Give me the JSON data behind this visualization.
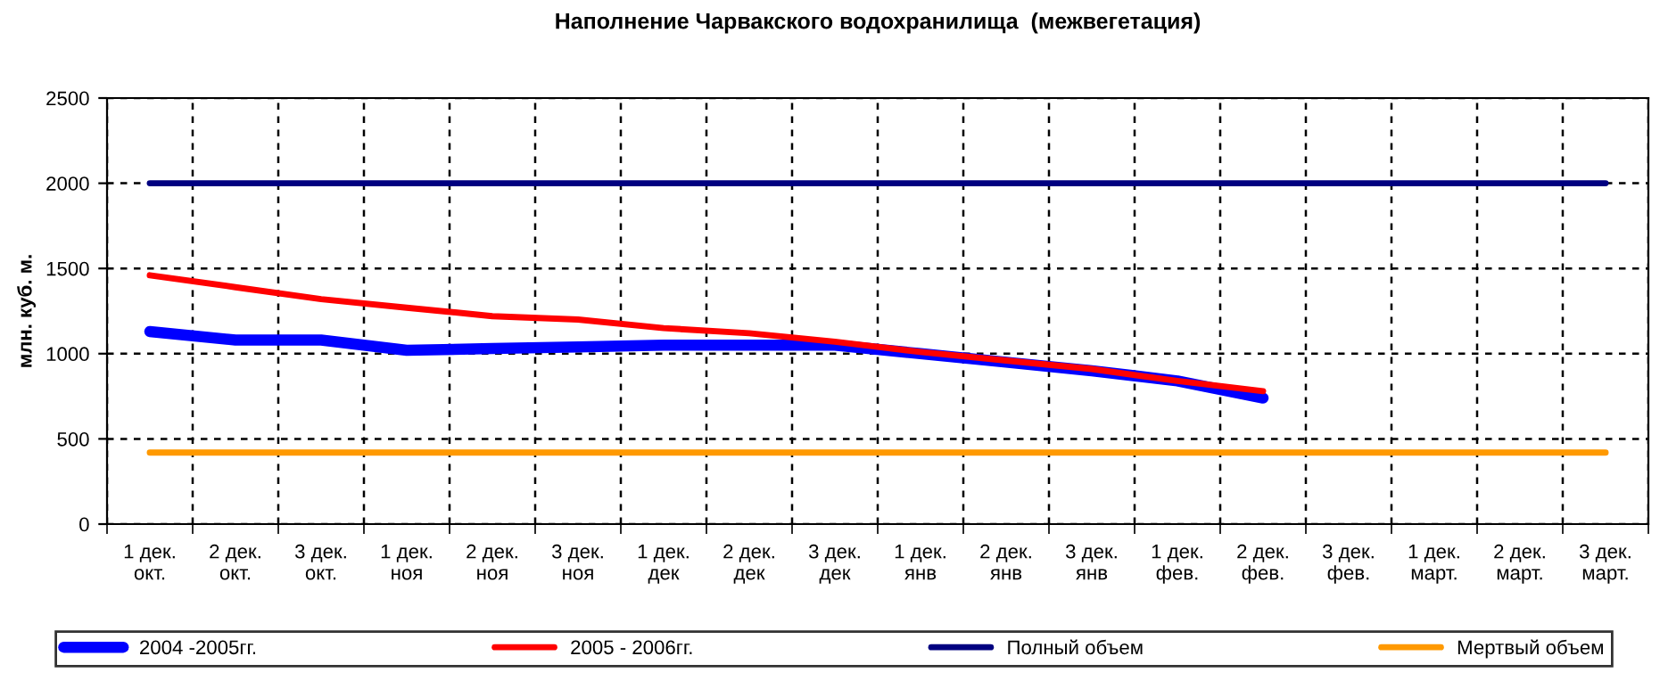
{
  "chart_data": {
    "type": "line",
    "title": "Наполнение Чарвакского водохранилища  (межвегетация)",
    "ylabel": "млн. куб. м.",
    "categories": [
      "1 дек.\nокт.",
      "2 дек.\nокт.",
      "3 дек.\nокт.",
      "1 дек.\nноя",
      "2 дек.\nноя",
      "3 дек.\nноя",
      "1 дек.\nдек",
      "2 дек.\nдек",
      "3 дек.\nдек",
      "1 дек.\nянв",
      "2 дек.\nянв",
      "3 дек.\nянв",
      "1 дек.\nфев.",
      "2 дек.\nфев.",
      "3 дек.\nфев.",
      "1 дек.\nмарт.",
      "2 дек.\nмарт.",
      "3 дек.\nмарт."
    ],
    "series": [
      {
        "name": "2004 -2005гг.",
        "color": "#0000ff",
        "values": [
          1130,
          1080,
          1080,
          1020,
          1030,
          1040,
          1050,
          1050,
          1050,
          1000,
          950,
          900,
          840,
          740,
          null,
          null,
          null,
          null
        ]
      },
      {
        "name": "2005 - 2006гг.",
        "color": "#ff0000",
        "values": [
          1460,
          1390,
          1320,
          1270,
          1220,
          1200,
          1150,
          1120,
          1070,
          1010,
          960,
          910,
          840,
          780,
          null,
          null,
          null,
          null
        ]
      },
      {
        "name": "Полный объем",
        "color": "#000080",
        "values": [
          2000,
          2000,
          2000,
          2000,
          2000,
          2000,
          2000,
          2000,
          2000,
          2000,
          2000,
          2000,
          2000,
          2000,
          2000,
          2000,
          2000,
          2000
        ]
      },
      {
        "name": "Мертвый объем",
        "color": "#ff9900",
        "values": [
          420,
          420,
          420,
          420,
          420,
          420,
          420,
          420,
          420,
          420,
          420,
          420,
          420,
          420,
          420,
          420,
          420,
          420
        ]
      }
    ],
    "ylim": [
      0,
      2500
    ],
    "yticks": [
      0,
      500,
      1000,
      1500,
      2000,
      2500
    ],
    "grid": true,
    "legend": "bottom",
    "marker": "none",
    "line_style": "solid"
  }
}
